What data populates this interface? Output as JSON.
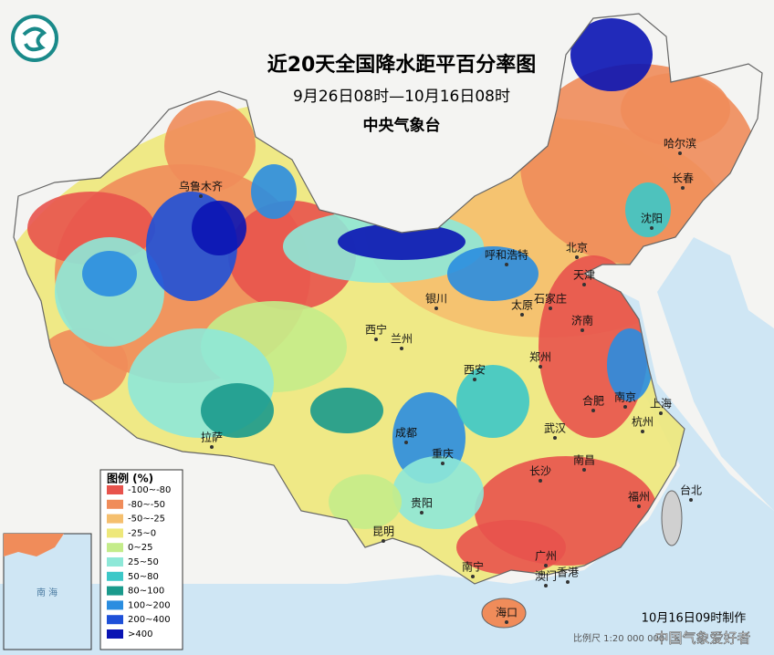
{
  "header": {
    "title": "近20天全国降水距平百分率图",
    "subtitle": "9月26日08时—10月16日08时",
    "agency": "中央气象台"
  },
  "legend": {
    "title": "图例 (%)",
    "items": [
      {
        "label": "-100~-80",
        "color": "#e8534c"
      },
      {
        "label": "-80~-50",
        "color": "#f08c5a"
      },
      {
        "label": "-50~-25",
        "color": "#f5bf6e"
      },
      {
        "label": "-25~0",
        "color": "#eee87a"
      },
      {
        "label": "0~25",
        "color": "#c4ec8a"
      },
      {
        "label": "25~50",
        "color": "#8ee8d8"
      },
      {
        "label": "50~80",
        "color": "#3cc8c8"
      },
      {
        "label": "80~100",
        "color": "#1a9a8c"
      },
      {
        "label": "100~200",
        "color": "#2a8de0"
      },
      {
        "label": "200~400",
        "color": "#1e50d8"
      },
      {
        "label": ">400",
        "color": "#0a14b4"
      }
    ]
  },
  "cities": [
    "乌鲁木齐",
    "拉萨",
    "西宁",
    "兰州",
    "银川",
    "呼和浩特",
    "北京",
    "天津",
    "石家庄",
    "太原",
    "济南",
    "郑州",
    "西安",
    "成都",
    "重庆",
    "贵阳",
    "昆明",
    "南宁",
    "广州",
    "澳门",
    "香港",
    "海口",
    "长沙",
    "武汉",
    "南昌",
    "福州",
    "台北",
    "杭州",
    "上海",
    "南京",
    "合肥",
    "沈阳",
    "长春",
    "哈尔滨"
  ],
  "inset": {
    "label": "南 海"
  },
  "footer": {
    "made": "10月16日09时制作",
    "watermark": "中国气象爱好者",
    "scale": "比例尺 1:20 000 000"
  }
}
